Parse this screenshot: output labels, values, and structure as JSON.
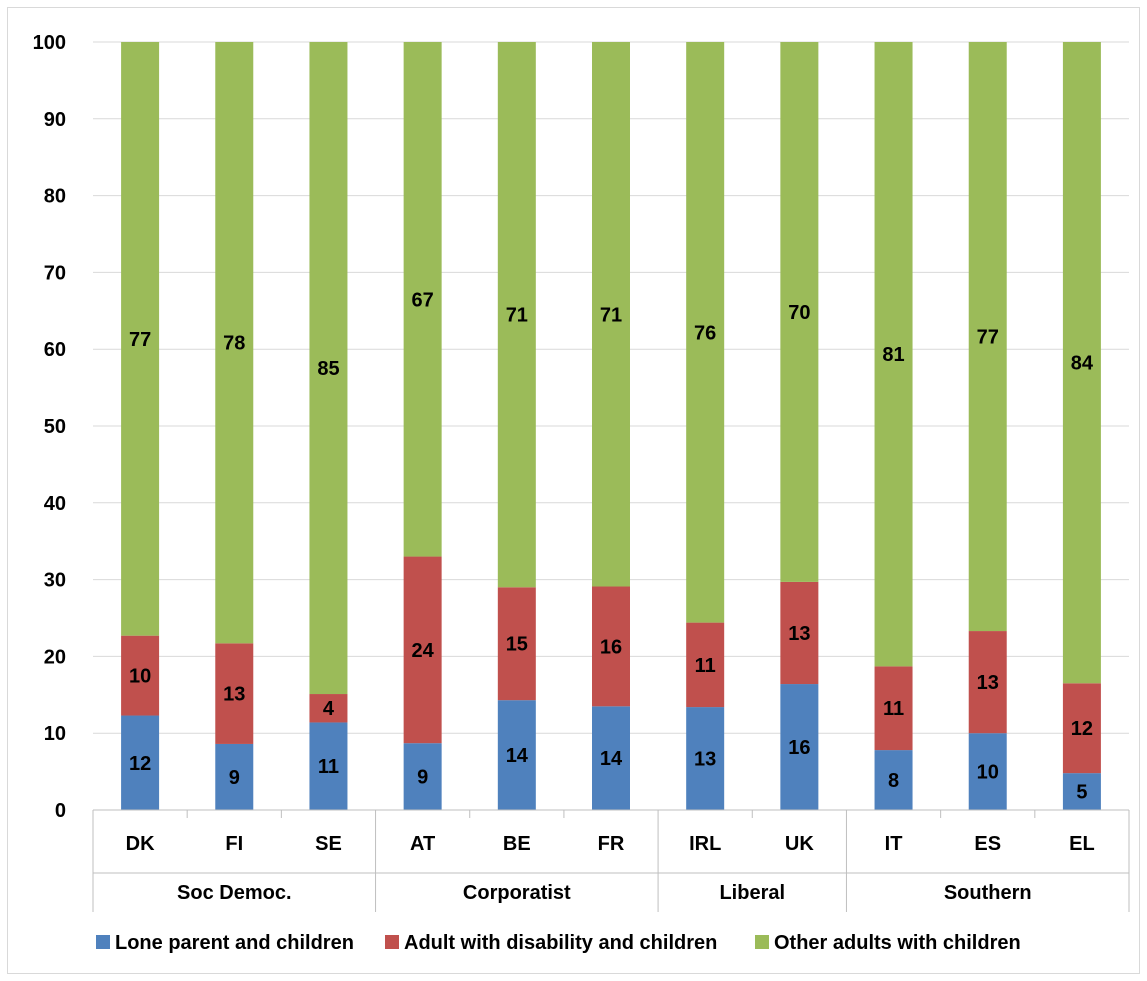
{
  "chart_data": {
    "type": "bar",
    "stacked": true,
    "categories": [
      "DK",
      "FI",
      "SE",
      "AT",
      "BE",
      "FR",
      "IRL",
      "UK",
      "IT",
      "ES",
      "EL"
    ],
    "groups": [
      {
        "label": "Soc Democ.",
        "categories": [
          "DK",
          "FI",
          "SE"
        ]
      },
      {
        "label": "Corporatist",
        "categories": [
          "AT",
          "BE",
          "FR"
        ]
      },
      {
        "label": "Liberal",
        "categories": [
          "IRL",
          "UK"
        ]
      },
      {
        "label": "Southern",
        "categories": [
          "IT",
          "ES",
          "EL"
        ]
      }
    ],
    "series": [
      {
        "name": "Lone parent and children",
        "color": "#4f81bd",
        "values": [
          12.3,
          8.6,
          11.4,
          8.7,
          14.3,
          13.5,
          13.4,
          16.4,
          7.8,
          10.0,
          4.8
        ],
        "labels": [
          "12",
          "9",
          "11",
          "9",
          "14",
          "14",
          "13",
          "16",
          "8",
          "10",
          "5"
        ]
      },
      {
        "name": "Adult with disability and children",
        "color": "#c0504d",
        "values": [
          10.4,
          13.1,
          3.7,
          24.3,
          14.7,
          15.6,
          11.0,
          13.3,
          10.9,
          13.3,
          11.7
        ],
        "labels": [
          "10",
          "13",
          "4",
          "24",
          "15",
          "16",
          "11",
          "13",
          "11",
          "13",
          "12"
        ]
      },
      {
        "name": "Other adults with children",
        "color": "#9bbb59",
        "values": [
          77.3,
          78.3,
          84.9,
          67.0,
          71.0,
          70.9,
          75.6,
          70.3,
          81.3,
          76.7,
          83.5
        ],
        "labels": [
          "77",
          "78",
          "85",
          "67",
          "71",
          "71",
          "76",
          "70",
          "81",
          "77",
          "84"
        ]
      }
    ],
    "yticks": [
      "0",
      "10",
      "20",
      "30",
      "40",
      "50",
      "60",
      "70",
      "80",
      "90",
      "100"
    ],
    "ylim": [
      0,
      100
    ],
    "grid": true,
    "legend_position": "bottom",
    "title": "",
    "xlabel": "",
    "ylabel": ""
  }
}
